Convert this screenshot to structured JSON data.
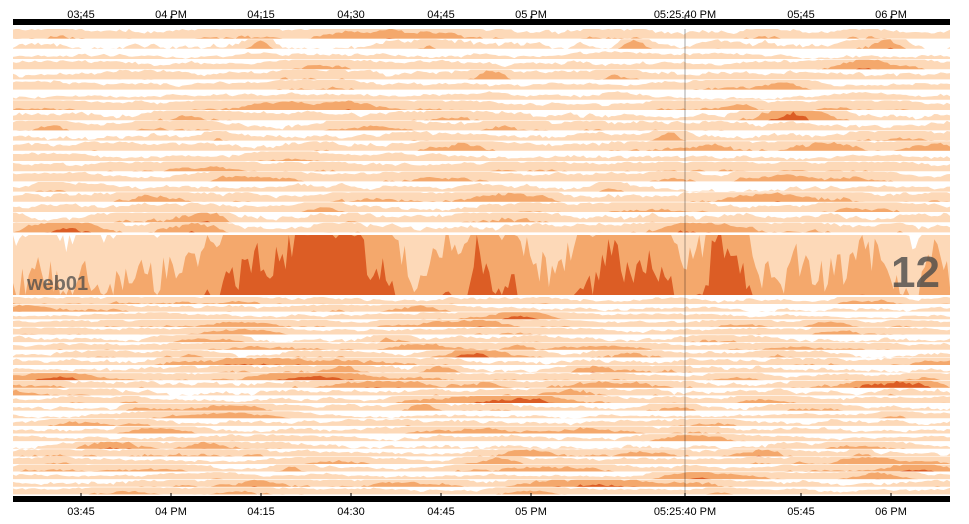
{
  "chart_data": {
    "type": "area",
    "subtype": "horizon",
    "colors": [
      "#fdd9b8",
      "#f4a86c",
      "#dc5d25"
    ],
    "axis": {
      "ticks": [
        "03:45",
        "04 PM",
        "04:15",
        "04:30",
        "04:45",
        "05 PM",
        "05:25:40 PM",
        "05:45",
        "06 PM"
      ],
      "hover_tick": "05:25:40 PM"
    },
    "row_count": 47,
    "focus_row": {
      "name": "web01",
      "value": "12"
    },
    "bands": 3,
    "spike_times": [
      "04:16",
      "05:20",
      "05:30"
    ]
  }
}
